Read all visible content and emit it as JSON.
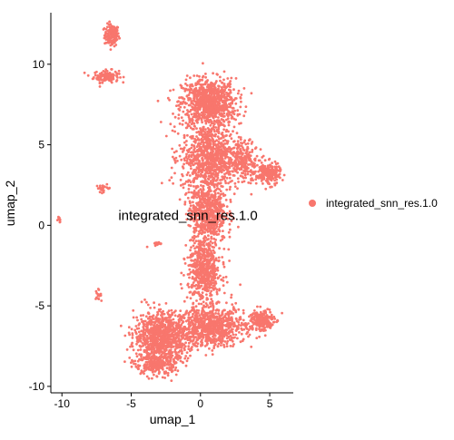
{
  "chart_data": {
    "type": "scatter",
    "xlabel": "umap_1",
    "ylabel": "umap_2",
    "xlim": [
      -10.8,
      6.7
    ],
    "ylim": [
      -10.4,
      13.2
    ],
    "x_ticks": [
      -10,
      -5,
      0,
      5
    ],
    "y_ticks": [
      -10,
      -5,
      0,
      5,
      10
    ],
    "x_tick_labels": [
      "-10",
      "-5",
      "0",
      "5"
    ],
    "y_tick_labels": [
      "-10",
      "-5",
      "0",
      "5",
      "10"
    ],
    "grid": false,
    "legend_position": "right",
    "series": [
      {
        "name": "integrated_snn_res.1.0",
        "color": "#F8766D",
        "clusters": [
          {
            "center": [
              -6.4,
              11.8
            ],
            "spread": [
              0.35,
              0.45
            ],
            "n": 150
          },
          {
            "center": [
              -6.8,
              9.25
            ],
            "spread": [
              0.6,
              0.25
            ],
            "n": 120
          },
          {
            "center": [
              -7.0,
              2.3
            ],
            "spread": [
              0.35,
              0.15
            ],
            "n": 25
          },
          {
            "center": [
              -10.2,
              0.35
            ],
            "spread": [
              0.1,
              0.12
            ],
            "n": 10
          },
          {
            "center": [
              -7.4,
              -4.3
            ],
            "spread": [
              0.15,
              0.2
            ],
            "n": 15
          },
          {
            "center": [
              -3.1,
              -1.2
            ],
            "spread": [
              0.5,
              0.1
            ],
            "n": 12
          },
          {
            "center": [
              0.6,
              7.6
            ],
            "spread": [
              1.3,
              1.0
            ],
            "n": 900
          },
          {
            "center": [
              0.7,
              4.2
            ],
            "spread": [
              1.4,
              1.4
            ],
            "n": 900
          },
          {
            "center": [
              0.5,
              0.8
            ],
            "spread": [
              0.9,
              1.2
            ],
            "n": 600
          },
          {
            "center": [
              0.3,
              -2.8
            ],
            "spread": [
              0.8,
              1.3
            ],
            "n": 600
          },
          {
            "center": [
              4.9,
              3.2
            ],
            "spread": [
              0.6,
              0.45
            ],
            "n": 220
          },
          {
            "center": [
              3.2,
              4.0
            ],
            "spread": [
              0.7,
              0.8
            ],
            "n": 180
          },
          {
            "center": [
              -2.8,
              -6.9
            ],
            "spread": [
              1.3,
              1.0
            ],
            "n": 900
          },
          {
            "center": [
              0.8,
              -6.3
            ],
            "spread": [
              1.6,
              0.8
            ],
            "n": 800
          },
          {
            "center": [
              4.4,
              -5.9
            ],
            "spread": [
              0.6,
              0.5
            ],
            "n": 200
          },
          {
            "center": [
              -3.2,
              -8.6
            ],
            "spread": [
              1.0,
              0.5
            ],
            "n": 250
          }
        ]
      }
    ],
    "annotations": [
      {
        "text": "integrated_snn_res.1.0",
        "x": -0.9,
        "y": 0.6
      }
    ]
  }
}
